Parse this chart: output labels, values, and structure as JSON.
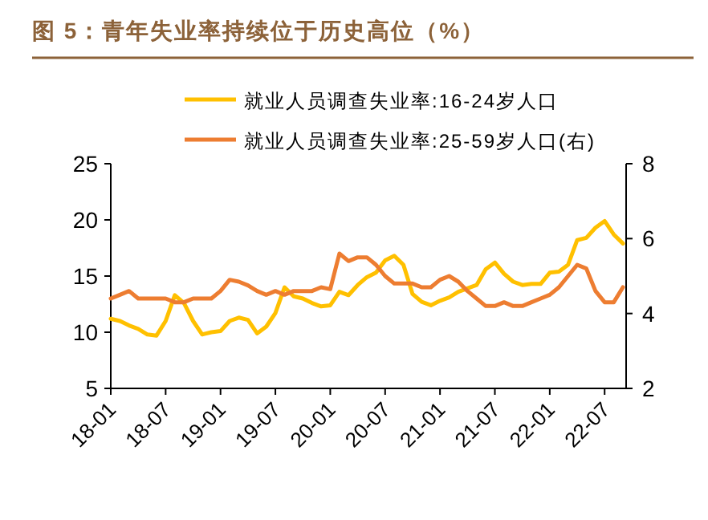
{
  "chart_data": {
    "type": "line",
    "title": "图 5：青年失业率持续位于历史高位（%）",
    "categories": [
      "18-01",
      null,
      null,
      null,
      null,
      null,
      "18-07",
      null,
      null,
      null,
      null,
      null,
      "19-01",
      null,
      null,
      null,
      null,
      null,
      "19-07",
      null,
      null,
      null,
      null,
      null,
      "20-01",
      null,
      null,
      null,
      null,
      null,
      "20-07",
      null,
      null,
      null,
      null,
      null,
      "21-01",
      null,
      null,
      null,
      null,
      null,
      "21-07",
      null,
      null,
      null,
      null,
      null,
      "22-01",
      null,
      null,
      null,
      null,
      null,
      "22-07",
      null,
      null
    ],
    "series": [
      {
        "name": "就业人员调查失业率:16-24岁人口",
        "color": "#ffc000",
        "values": [
          11.2,
          11.0,
          10.6,
          10.3,
          9.8,
          9.7,
          11.0,
          13.3,
          12.6,
          11.0,
          9.8,
          10.0,
          10.1,
          11.0,
          11.3,
          11.1,
          9.9,
          10.5,
          11.7,
          14.0,
          13.2,
          13.0,
          12.6,
          12.3,
          12.4,
          13.6,
          13.3,
          14.2,
          14.9,
          15.3,
          16.4,
          16.8,
          16.0,
          13.4,
          12.7,
          12.4,
          12.8,
          13.1,
          13.6,
          13.9,
          14.2,
          15.6,
          16.2,
          15.2,
          14.5,
          14.2,
          14.3,
          14.3,
          15.3,
          15.4,
          16.0,
          18.2,
          18.4,
          19.3,
          19.9,
          18.7,
          17.9
        ]
      },
      {
        "name": "就业人员调查失业率:25-59岁人口(右)",
        "color": "#ed7d31",
        "axis": "y2",
        "values": [
          4.4,
          4.5,
          4.6,
          4.4,
          4.4,
          4.4,
          4.4,
          4.3,
          4.3,
          4.4,
          4.4,
          4.4,
          4.6,
          4.9,
          4.85,
          4.75,
          4.6,
          4.5,
          4.6,
          4.5,
          4.6,
          4.6,
          4.6,
          4.7,
          4.65,
          5.6,
          5.4,
          5.5,
          5.5,
          5.3,
          5.0,
          4.8,
          4.8,
          4.8,
          4.7,
          4.7,
          4.9,
          5.0,
          4.85,
          4.6,
          4.4,
          4.2,
          4.2,
          4.3,
          4.2,
          4.2,
          4.3,
          4.4,
          4.5,
          4.7,
          5.0,
          5.3,
          5.2,
          4.6,
          4.3,
          4.3,
          4.7
        ]
      }
    ],
    "ylim": [
      5,
      25
    ],
    "yticks": [
      5,
      10,
      15,
      20,
      25
    ],
    "y2lim": [
      2,
      8
    ],
    "y2ticks": [
      2,
      4,
      6,
      8
    ],
    "legend": "top",
    "grid": false,
    "marker": "none",
    "line_style": "solid"
  }
}
